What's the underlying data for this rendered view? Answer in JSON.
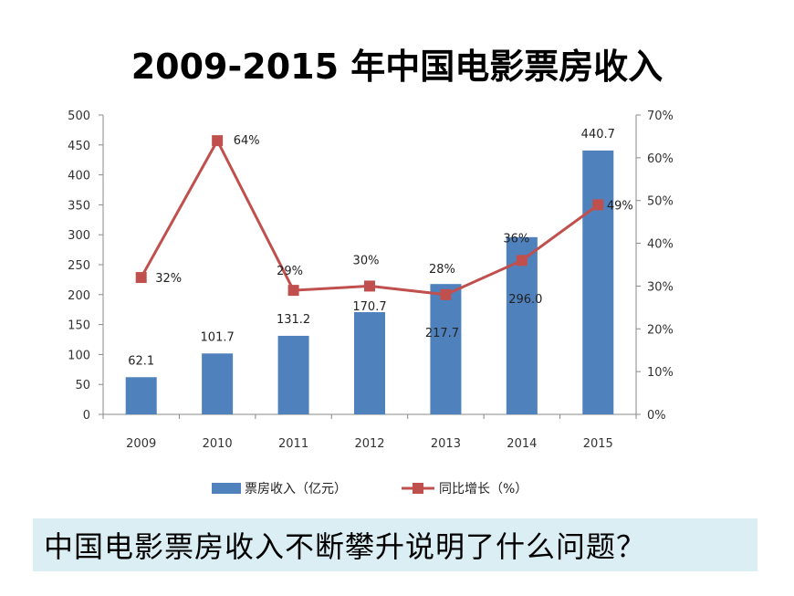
{
  "page": {
    "title": "2009-2015 年中国电影票房收入",
    "question": "中国电影票房收入不断攀升说明了什么问题？",
    "question_bg": "#dbeef3"
  },
  "chart_data": {
    "type": "bar",
    "title": "2009-2015 年中国电影票房收入",
    "categories": [
      "2009",
      "2010",
      "2011",
      "2012",
      "2013",
      "2014",
      "2015"
    ],
    "series": [
      {
        "name": "票房收入（亿元）",
        "type": "bar",
        "axis": "left",
        "color": "#4f81bd",
        "values": [
          62.1,
          101.7,
          131.2,
          170.7,
          217.7,
          296.0,
          440.7
        ],
        "labels": [
          "62.1",
          "101.7",
          "131.2",
          "170.7",
          "217.7",
          "296.0",
          "440.7"
        ]
      },
      {
        "name": "同比增长（%）",
        "type": "line",
        "axis": "right",
        "color": "#c0504d",
        "values": [
          32,
          64,
          29,
          30,
          28,
          36,
          49
        ],
        "labels": [
          "32%",
          "64%",
          "29%",
          "30%",
          "28%",
          "36%",
          "49%"
        ]
      }
    ],
    "y_left": {
      "ylim": [
        0,
        500
      ],
      "ticks": [
        "0",
        "50",
        "100",
        "150",
        "200",
        "250",
        "300",
        "350",
        "400",
        "450",
        "500"
      ]
    },
    "y_right": {
      "ylim": [
        0,
        70
      ],
      "ticks": [
        "0%",
        "10%",
        "20%",
        "30%",
        "40%",
        "50%",
        "60%",
        "70%"
      ]
    },
    "grid": false,
    "legend_position": "bottom"
  }
}
